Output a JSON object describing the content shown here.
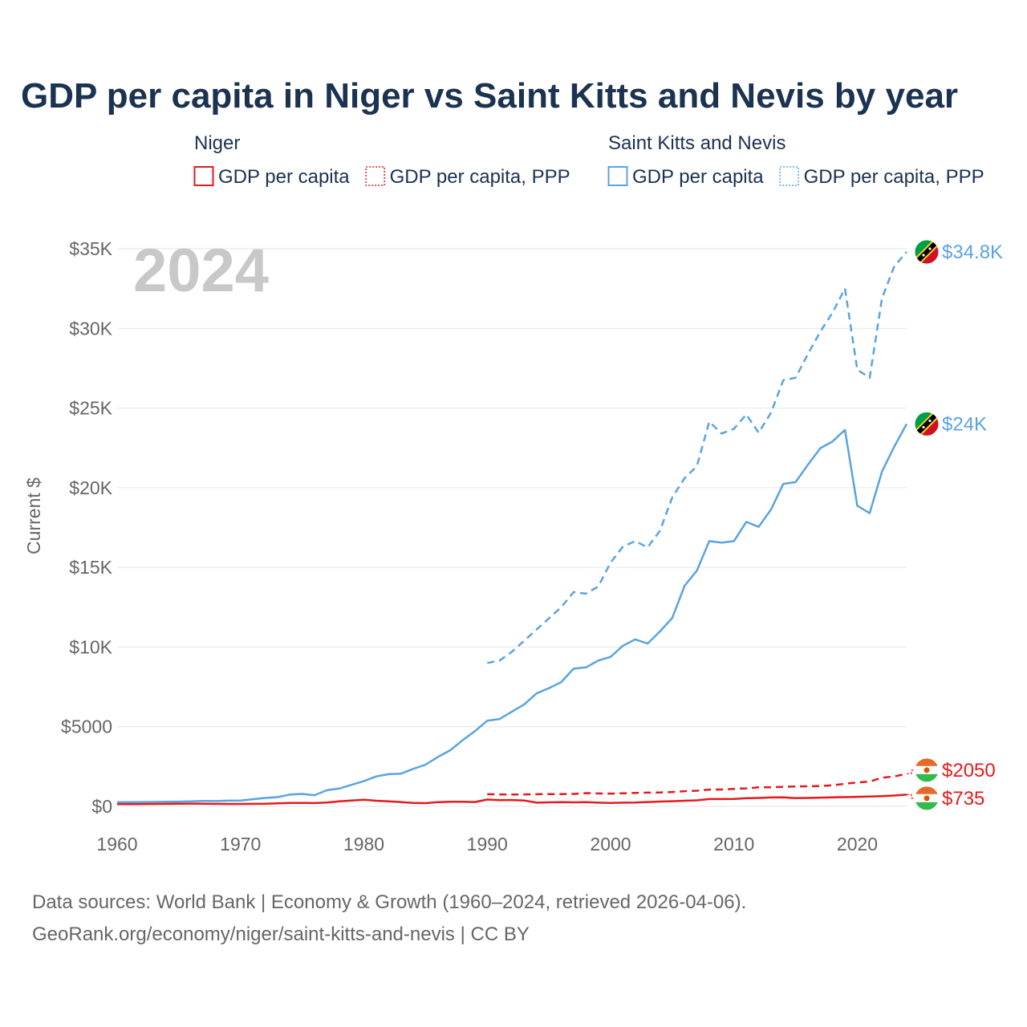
{
  "chart_data": {
    "type": "line",
    "title": "GDP per capita in Niger vs Saint Kitts and Nevis by year",
    "ylabel": "Current $",
    "xlabel": "",
    "ylim": [
      0,
      35000
    ],
    "xlim": [
      1960,
      2024
    ],
    "x_ticks": [
      {
        "value": 1960,
        "label": "1960"
      },
      {
        "value": 1970,
        "label": "1970"
      },
      {
        "value": 1980,
        "label": "1980"
      },
      {
        "value": 1990,
        "label": "1990"
      },
      {
        "value": 2000,
        "label": "2000"
      },
      {
        "value": 2010,
        "label": "2010"
      },
      {
        "value": 2020,
        "label": "2020"
      }
    ],
    "y_ticks": [
      {
        "value": 0,
        "label": "$0"
      },
      {
        "value": 5000,
        "label": "$5000"
      },
      {
        "value": 10000,
        "label": "$10K"
      },
      {
        "value": 15000,
        "label": "$15K"
      },
      {
        "value": 20000,
        "label": "$20K"
      },
      {
        "value": 25000,
        "label": "$25K"
      },
      {
        "value": 30000,
        "label": "$30K"
      },
      {
        "value": 35000,
        "label": "$35K"
      }
    ],
    "year_label": "2024",
    "legend_groups": [
      {
        "name": "Niger",
        "color": "#e41a1c",
        "items": [
          "GDP per capita",
          "GDP per capita, PPP"
        ]
      },
      {
        "name": "Saint Kitts and Nevis",
        "color": "#5ba3e0",
        "items": [
          "GDP per capita",
          "GDP per capita, PPP"
        ]
      }
    ],
    "series": [
      {
        "name": "Saint Kitts and Nevis GDP per capita, PPP",
        "country": "Saint Kitts and Nevis",
        "color": "#5ba3e0",
        "dash": "dashed",
        "start_year": 1990,
        "end_label": "$34.8K",
        "values": [
          9000,
          9150,
          9700,
          10400,
          11100,
          11800,
          12500,
          13450,
          13350,
          13800,
          15300,
          16300,
          16650,
          16250,
          17300,
          19400,
          20600,
          21350,
          24150,
          23400,
          23700,
          24600,
          23450,
          24700,
          26750,
          26900,
          28400,
          29800,
          31000,
          32500,
          27400,
          26900,
          31900,
          33900,
          34800
        ]
      },
      {
        "name": "Saint Kitts and Nevis GDP per capita",
        "country": "Saint Kitts and Nevis",
        "color": "#5ba3e0",
        "dash": "solid",
        "start_year": 1960,
        "end_label": "$24K",
        "values": [
          260,
          265,
          270,
          275,
          285,
          295,
          310,
          340,
          330,
          360,
          370,
          450,
          530,
          580,
          740,
          780,
          700,
          1010,
          1120,
          1350,
          1580,
          1880,
          2020,
          2050,
          2350,
          2620,
          3100,
          3520,
          4150,
          4720,
          5380,
          5480,
          5940,
          6400,
          7090,
          7420,
          7800,
          8640,
          8720,
          9150,
          9380,
          10080,
          10480,
          10220,
          10980,
          11830,
          13850,
          14800,
          16650,
          16550,
          16650,
          17860,
          17540,
          18630,
          20240,
          20350,
          21450,
          22480,
          22910,
          23630,
          18870,
          18400,
          21020,
          22580,
          24000
        ]
      },
      {
        "name": "Niger GDP per capita, PPP",
        "country": "Niger",
        "color": "#e41a1c",
        "dash": "dashed",
        "start_year": 1990,
        "end_label": "$2050",
        "values": [
          760,
          750,
          740,
          750,
          760,
          770,
          770,
          780,
          830,
          810,
          800,
          820,
          840,
          860,
          870,
          900,
          950,
          980,
          1050,
          1060,
          1100,
          1130,
          1200,
          1200,
          1230,
          1250,
          1260,
          1280,
          1320,
          1420,
          1500,
          1550,
          1800,
          1880,
          2050
        ]
      },
      {
        "name": "Niger GDP per capita",
        "country": "Niger",
        "color": "#e41a1c",
        "dash": "solid",
        "start_year": 1960,
        "end_label": "$735",
        "values": [
          135,
          140,
          145,
          150,
          155,
          165,
          170,
          160,
          155,
          150,
          150,
          155,
          160,
          185,
          210,
          215,
          205,
          240,
          310,
          370,
          420,
          350,
          310,
          270,
          210,
          200,
          260,
          290,
          290,
          270,
          430,
          390,
          400,
          370,
          230,
          250,
          260,
          250,
          260,
          230,
          210,
          230,
          240,
          270,
          300,
          320,
          350,
          380,
          460,
          460,
          470,
          510,
          530,
          560,
          570,
          520,
          530,
          550,
          570,
          580,
          600,
          620,
          640,
          680,
          735
        ]
      }
    ],
    "end_markers": [
      {
        "country": "Saint Kitts and Nevis",
        "value": 34800,
        "flag_icon": "saint-kitts-and-nevis-flag-icon"
      },
      {
        "country": "Saint Kitts and Nevis",
        "value": 24000,
        "flag_icon": "saint-kitts-and-nevis-flag-icon"
      },
      {
        "country": "Niger",
        "value": 2050,
        "flag_icon": "niger-flag-icon"
      },
      {
        "country": "Niger",
        "value": 735,
        "flag_icon": "niger-flag-icon"
      }
    ],
    "sources": [
      "Data sources: World Bank | Economy & Growth (1960–2024, retrieved 2026-04-06).",
      "GeoRank.org/economy/niger/saint-kitts-and-nevis | CC BY"
    ]
  }
}
